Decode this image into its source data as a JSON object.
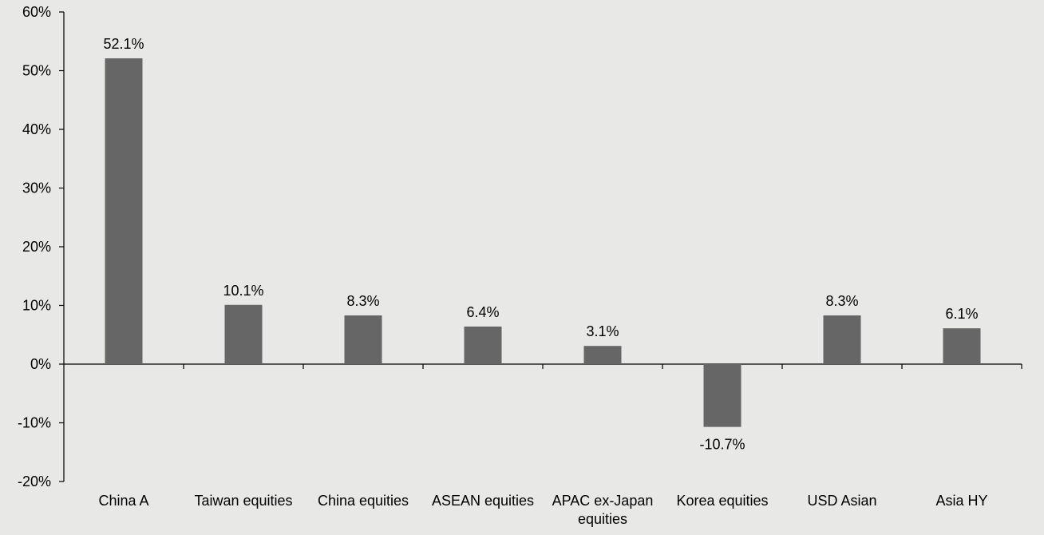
{
  "chart_data": {
    "type": "bar",
    "title": "",
    "xlabel": "",
    "ylabel": "",
    "categories": [
      "China A",
      "Taiwan equities",
      "China equities",
      "ASEAN equities",
      "APAC ex-Japan equities",
      "Korea equities",
      "USD Asian",
      "Asia HY"
    ],
    "category_lines": [
      [
        "China A"
      ],
      [
        "Taiwan equities"
      ],
      [
        "China equities"
      ],
      [
        "ASEAN equities"
      ],
      [
        "APAC ex-Japan",
        "equities"
      ],
      [
        "Korea equities"
      ],
      [
        "USD Asian"
      ],
      [
        "Asia HY"
      ]
    ],
    "values": [
      52.1,
      10.1,
      8.3,
      6.4,
      3.1,
      -10.7,
      8.3,
      6.1
    ],
    "data_labels": [
      "52.1%",
      "10.1%",
      "8.3%",
      "6.4%",
      "3.1%",
      "-10.7%",
      "8.3%",
      "6.1%"
    ],
    "ylim": [
      -20,
      60
    ],
    "yticks": [
      -20,
      -10,
      0,
      10,
      20,
      30,
      40,
      50,
      60
    ],
    "ytick_labels": [
      "-20%",
      "-10%",
      "0%",
      "10%",
      "20%",
      "30%",
      "40%",
      "50%",
      "60%"
    ],
    "grid": false,
    "legend": "none",
    "colors": {
      "bar": "#666666",
      "axis": "#000000",
      "background": "#e8e8e7"
    }
  }
}
